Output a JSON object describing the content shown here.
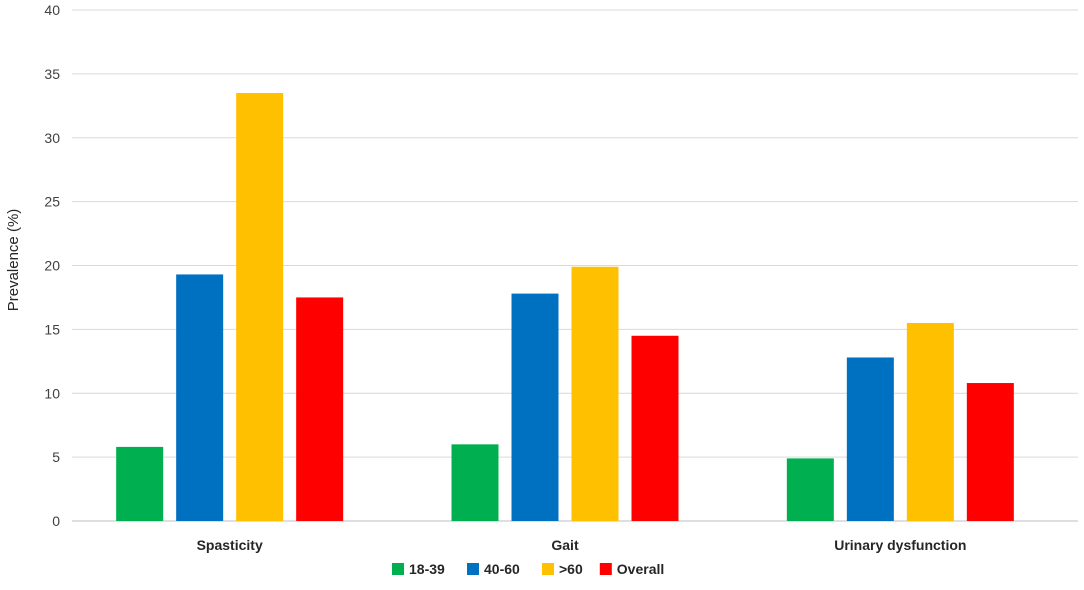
{
  "chart_data": {
    "type": "bar",
    "title": "",
    "xlabel": "",
    "ylabel": "Prevalence (%)",
    "ylim": [
      0,
      40
    ],
    "yticks": [
      0,
      5,
      10,
      15,
      20,
      25,
      30,
      35,
      40
    ],
    "grid": true,
    "legend_position": "bottom",
    "categories": [
      "Spasticity",
      "Gait",
      "Urinary dysfunction"
    ],
    "series": [
      {
        "name": "18-39",
        "color": "#00b050",
        "values": [
          5.8,
          6.0,
          4.9
        ]
      },
      {
        "name": "40-60",
        "color": "#0070c0",
        "values": [
          19.3,
          17.8,
          12.8
        ]
      },
      {
        "name": ">60",
        "color": "#ffc000",
        "values": [
          33.5,
          19.9,
          15.5
        ]
      },
      {
        "name": "Overall",
        "color": "#ff0000",
        "values": [
          17.5,
          14.5,
          10.8
        ]
      }
    ]
  }
}
